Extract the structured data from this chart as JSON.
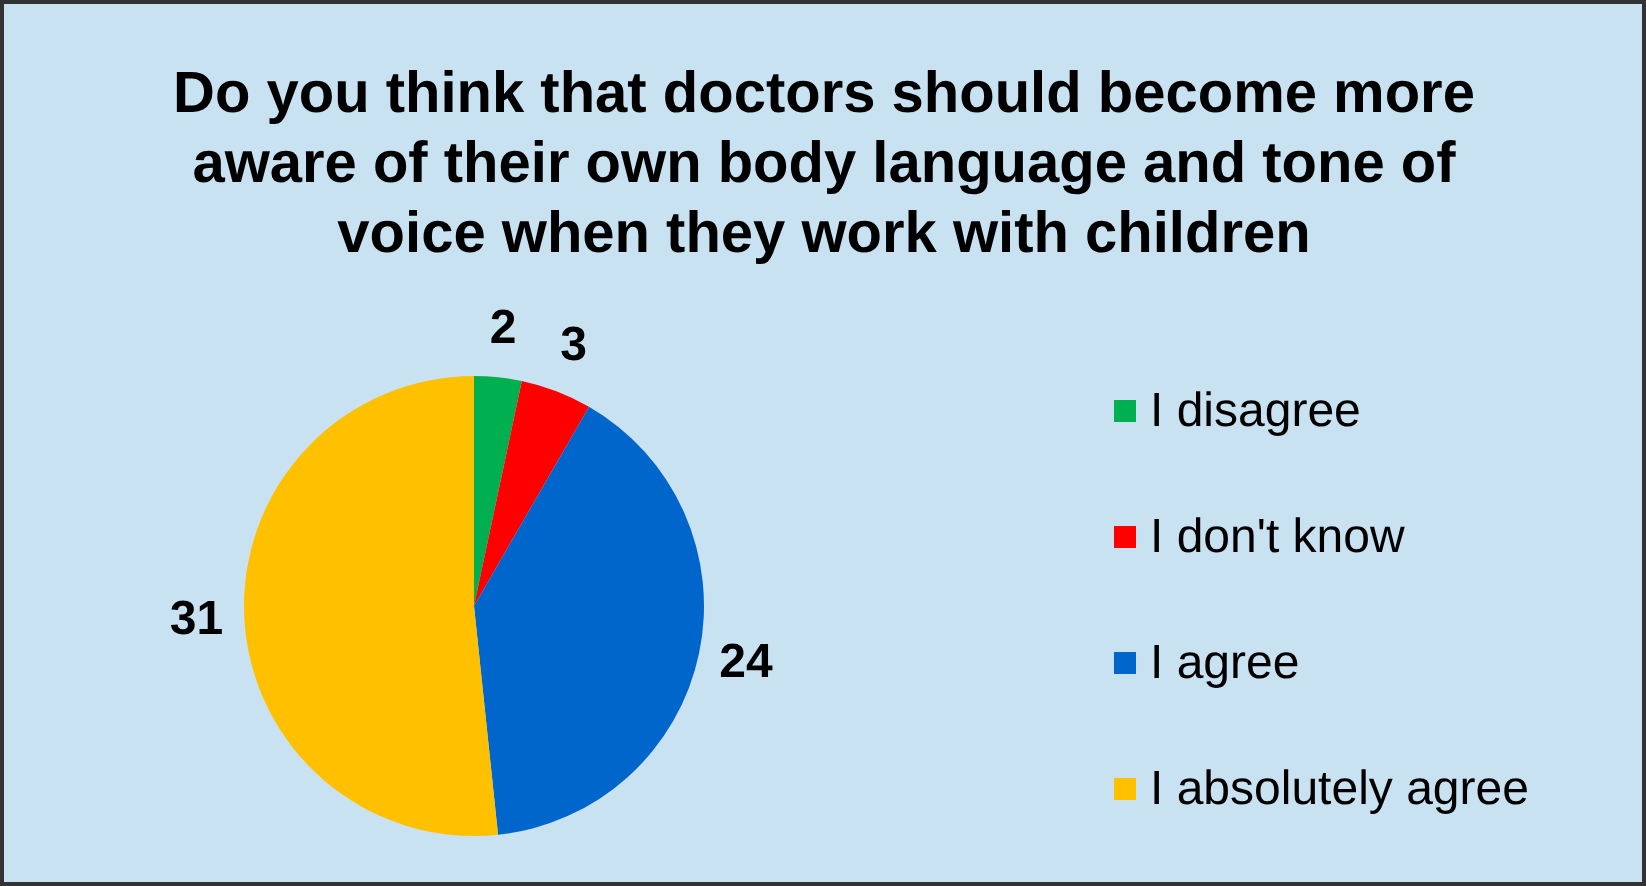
{
  "chart_data": {
    "type": "pie",
    "title": "Do you think that doctors should become more aware of their own body language and tone of voice when they work with children",
    "categories": [
      "I disagree",
      "I don't know",
      "I agree",
      "I absolutely agree"
    ],
    "values": [
      2,
      3,
      24,
      31
    ],
    "colors": [
      "#00b050",
      "#ff0000",
      "#0066cc",
      "#ffc000"
    ],
    "data_labels": true,
    "legend": "right"
  }
}
